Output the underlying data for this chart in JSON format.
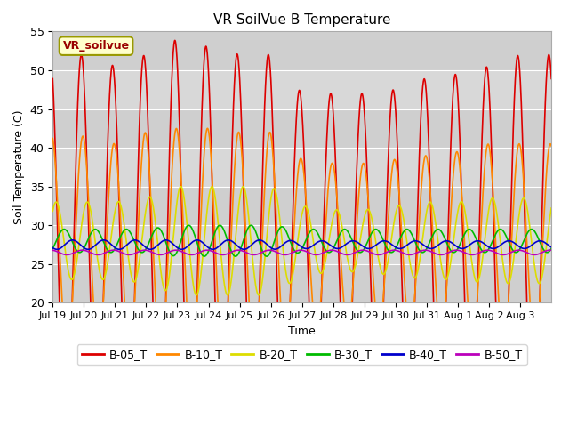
{
  "title": "VR SoilVue B Temperature",
  "xlabel": "Time",
  "ylabel": "Soil Temperature (C)",
  "annotation": "VR_soilvue",
  "ylim": [
    20,
    55
  ],
  "yticks": [
    20,
    25,
    30,
    35,
    40,
    45,
    50,
    55
  ],
  "legend_labels": [
    "B-05_T",
    "B-10_T",
    "B-20_T",
    "B-30_T",
    "B-40_T",
    "B-50_T"
  ],
  "line_colors": [
    "#dd0000",
    "#ff8800",
    "#dddd00",
    "#00bb00",
    "#0000cc",
    "#bb00bb"
  ],
  "line_widths": [
    1.2,
    1.2,
    1.2,
    1.2,
    1.2,
    1.2
  ],
  "background_color": "#ffffff",
  "plot_bg_color": "#d8d8d8",
  "grid_color": "#ffffff",
  "n_days": 16,
  "points_per_day": 144,
  "base_05": 27.0,
  "base_10": 27.5,
  "base_20": 28.0,
  "base_30": 28.0,
  "base_40": 27.5,
  "base_50": 26.5,
  "tick_dates": [
    "Jul 19",
    "Jul 20",
    "Jul 21",
    "Jul 22",
    "Jul 23",
    "Jul 24",
    "Jul 25",
    "Jul 26",
    "Jul 27",
    "Jul 28",
    "Jul 29",
    "Jul 30",
    "Jul 31",
    "Aug 1",
    "Aug 2",
    "Aug 3"
  ]
}
